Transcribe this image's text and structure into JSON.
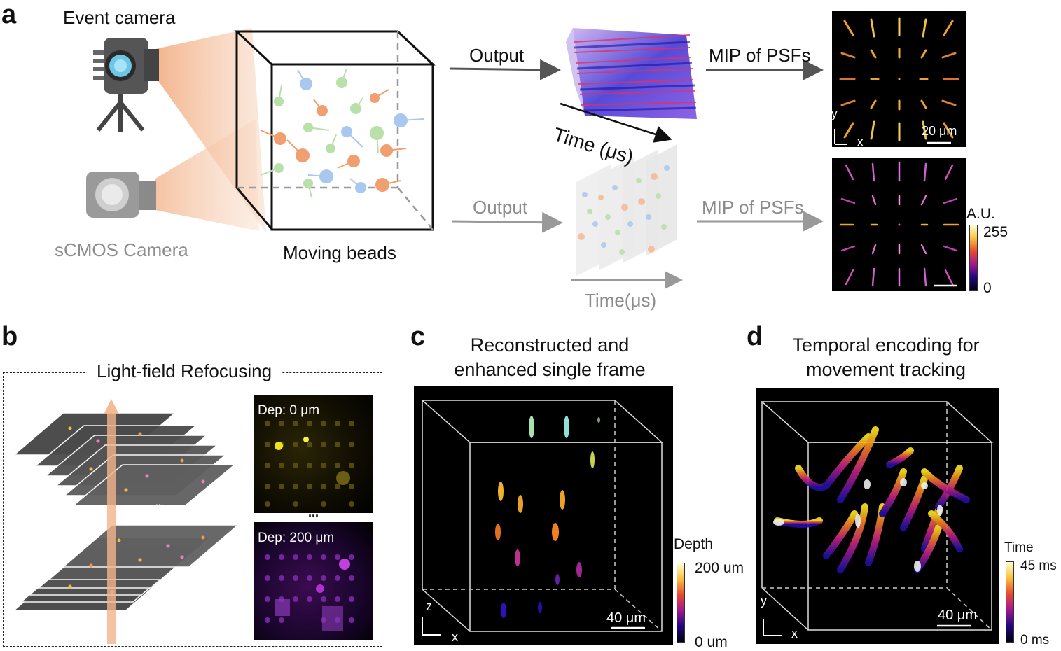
{
  "panel_a": {
    "label": "a",
    "event_camera": "Event camera",
    "scmos_camera": "sCMOS Camera",
    "moving_beads": "Moving beads",
    "output_top": "Output",
    "output_bottom": "Output",
    "mip_top": "MIP of PSFs",
    "mip_bottom": "MIP of PSFs",
    "time_top": "Time (μs)",
    "time_bottom": "Time(μs)",
    "scale_label": "20 μm",
    "axis_y": "y",
    "axis_x": "x",
    "colorbar_title": "A.U.",
    "colorbar_max": "255",
    "colorbar_min": "0"
  },
  "panel_b": {
    "label": "b",
    "title": "Light-field Refocusing",
    "dep_top": "Dep: 0 μm",
    "dep_bottom": "Dep: 200 μm",
    "ellipsis_small": "...",
    "ellipsis_big": "..."
  },
  "panel_c": {
    "label": "c",
    "title_line1": "Reconstructed and",
    "title_line2": "enhanced single frame",
    "scale_label": "40 μm",
    "axis_z": "z",
    "axis_x": "x",
    "colorbar_title": "Depth",
    "colorbar_max": "200 um",
    "colorbar_min": "0 um"
  },
  "panel_d": {
    "label": "d",
    "title_line1": "Temporal encoding for",
    "title_line2": "movement tracking",
    "scale_label": "40 μm",
    "axis_y": "y",
    "axis_x": "x",
    "colorbar_title": "Time",
    "colorbar_max": "45 ms",
    "colorbar_min": "0 ms"
  },
  "colors": {
    "orange_bead": "#f0a070",
    "blue_bead": "#a8c8f0",
    "green_bead": "#b8e0a8",
    "cone": "#f6c8a8"
  }
}
